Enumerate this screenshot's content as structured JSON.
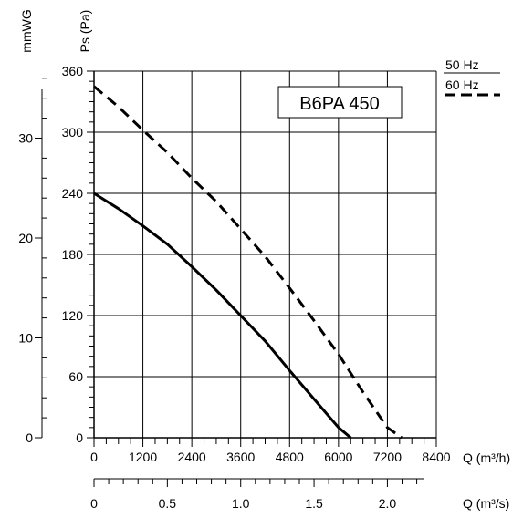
{
  "chart_data": {
    "type": "line",
    "title": "B6PA 450",
    "left_axis_title": "Ps (Pa)",
    "left2_axis_title": "mmWG",
    "bottom_axis_title": "Q (m³/h)",
    "bottom2_axis_title": "Q (m³/s)",
    "xlim": [
      0,
      8400
    ],
    "ylim": [
      0,
      360
    ],
    "x_ticks": [
      0,
      1200,
      2400,
      3600,
      4800,
      6000,
      7200,
      8400
    ],
    "y_ticks": [
      0,
      60,
      120,
      180,
      240,
      300,
      360
    ],
    "mmwg_ticks": [
      0,
      10,
      20,
      30
    ],
    "m3s_ticks": [
      {
        "value": 0,
        "label": "0"
      },
      {
        "value": 0.5,
        "label": "0.5"
      },
      {
        "value": 1.0,
        "label": "1.0"
      },
      {
        "value": 1.5,
        "label": "1.5"
      },
      {
        "value": 2.0,
        "label": "2.0"
      }
    ],
    "grid": true,
    "legend_position": "top-right",
    "series": [
      {
        "name": "50 Hz",
        "style": "solid",
        "color": "#000000",
        "points": [
          [
            0,
            240
          ],
          [
            600,
            225
          ],
          [
            1200,
            208
          ],
          [
            1800,
            190
          ],
          [
            2400,
            168
          ],
          [
            3000,
            145
          ],
          [
            3600,
            120
          ],
          [
            4200,
            95
          ],
          [
            4800,
            66
          ],
          [
            5400,
            38
          ],
          [
            6000,
            10
          ],
          [
            6300,
            0
          ]
        ]
      },
      {
        "name": "60 Hz",
        "style": "dashed",
        "color": "#000000",
        "points": [
          [
            0,
            345
          ],
          [
            600,
            325
          ],
          [
            1200,
            302
          ],
          [
            1800,
            280
          ],
          [
            2400,
            255
          ],
          [
            3000,
            232
          ],
          [
            3600,
            205
          ],
          [
            4200,
            178
          ],
          [
            4800,
            147
          ],
          [
            5400,
            115
          ],
          [
            6000,
            82
          ],
          [
            6600,
            45
          ],
          [
            7200,
            10
          ],
          [
            7550,
            0
          ]
        ]
      }
    ]
  }
}
